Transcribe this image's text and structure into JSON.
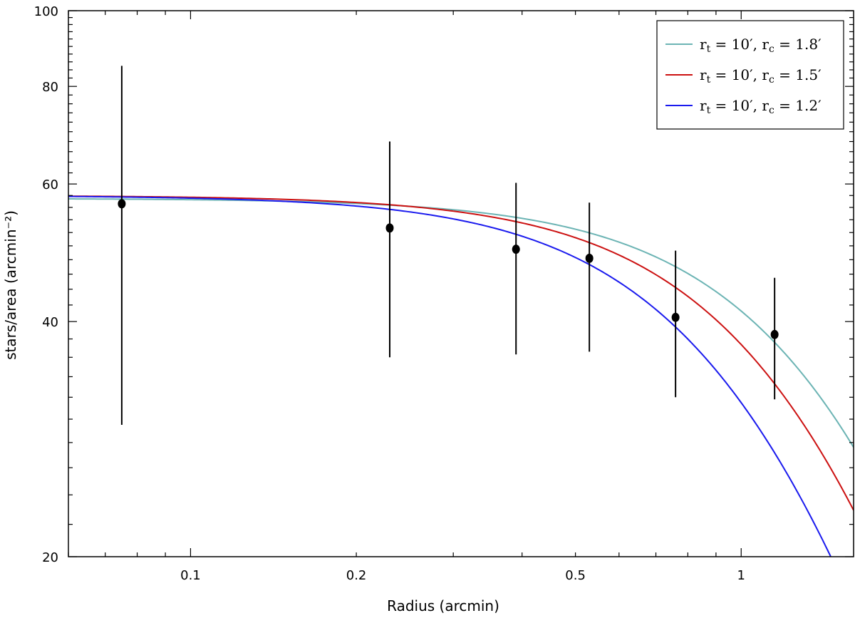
{
  "chart_data": {
    "type": "scatter",
    "title": "",
    "xlabel": "Radius (arcmin)",
    "ylabel": "stars/area (arcmin⁻²)",
    "xscale": "log",
    "yscale": "log",
    "xlim": [
      0.06,
      1.6
    ],
    "ylim": [
      20,
      100
    ],
    "x_ticks": [
      {
        "value": 0.1,
        "label": "0.1"
      },
      {
        "value": 0.2,
        "label": "0.2"
      },
      {
        "value": 0.5,
        "label": "0.5"
      },
      {
        "value": 1,
        "label": "1"
      }
    ],
    "y_ticks": [
      {
        "value": 20,
        "label": "20"
      },
      {
        "value": 40,
        "label": "40"
      },
      {
        "value": 60,
        "label": "60"
      },
      {
        "value": 80,
        "label": "80"
      },
      {
        "value": 100,
        "label": "100"
      }
    ],
    "grid": false,
    "legend_position": "top-right",
    "points": {
      "color": "#000000",
      "x": [
        0.075,
        0.23,
        0.39,
        0.53,
        0.76,
        1.15
      ],
      "y": [
        56.6,
        52.7,
        49.5,
        48.2,
        40.5,
        38.5
      ],
      "y_err_low": [
        29.5,
        36.0,
        36.3,
        36.6,
        32.0,
        31.8
      ],
      "y_err_high": [
        85.0,
        68.0,
        60.2,
        56.8,
        49.3,
        45.5
      ]
    },
    "series": [
      {
        "name": "rₜ = 10′,  rᴄ = 1.8′",
        "color": "#6cb4b4",
        "rt": 10,
        "rc": 1.8,
        "y0": 57.5
      },
      {
        "name": "rₜ = 10′,  rᴄ = 1.5′",
        "color": "#cc1111",
        "rt": 10,
        "rc": 1.5,
        "y0": 58.0
      },
      {
        "name": "rₜ = 10′,  rᴄ = 1.2′",
        "color": "#1a1aee",
        "rt": 10,
        "rc": 1.2,
        "y0": 58.0
      }
    ],
    "legend": [
      {
        "base": "r",
        "sub": "t",
        "mid": " = 10′,  ",
        "base2": "r",
        "sub2": "c",
        "tail": " = 1.8′"
      },
      {
        "base": "r",
        "sub": "t",
        "mid": " = 10′,  ",
        "base2": "r",
        "sub2": "c",
        "tail": " = 1.5′"
      },
      {
        "base": "r",
        "sub": "t",
        "mid": " = 10′,  ",
        "base2": "r",
        "sub2": "c",
        "tail": " = 1.2′"
      }
    ]
  }
}
